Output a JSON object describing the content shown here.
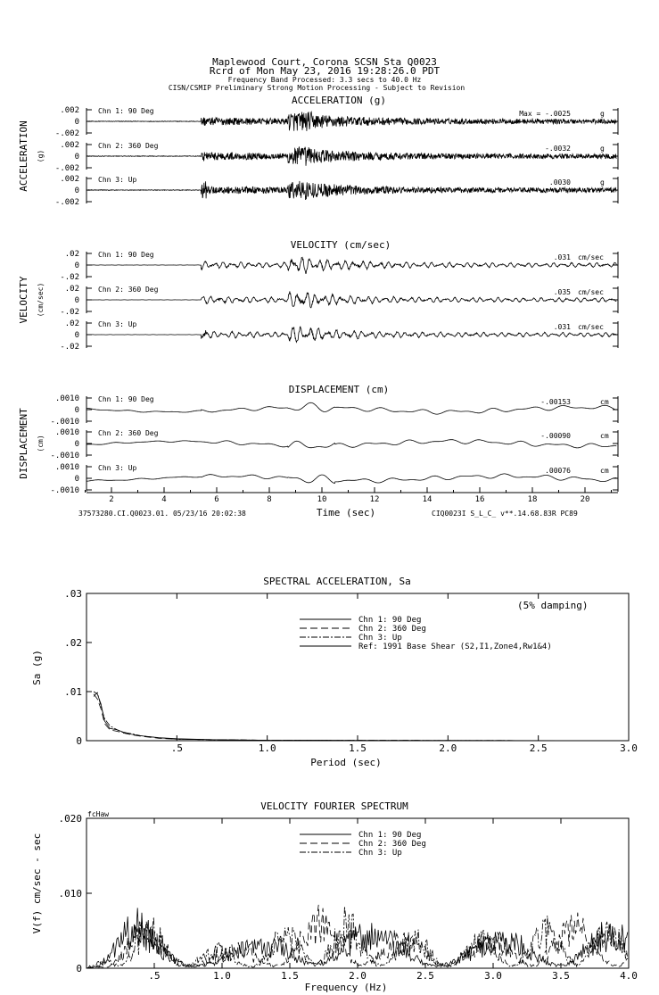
{
  "header": {
    "line1": "Maplewood Court, Corona    SCSN Sta Q0023",
    "line2": "Rcrd of Mon May 23, 2016 19:28:26.0 PDT",
    "line3": "Frequency Band Processed: 3.3 secs to 40.0 Hz",
    "line4": "CISN/CSMIP Preliminary Strong Motion Processing - Subject to Revision"
  },
  "footer": {
    "left": "37573280.CI.Q0023.01. 05/23/16 20:02:38",
    "right": "CIQ0023I  S_L_C_  v**.14.68.83R PC89"
  },
  "chart_data": [
    {
      "type": "line",
      "title": "ACCELERATION (g)",
      "ylabel": "ACCELERATION",
      "yunit": "(g)",
      "xlabel": "Time (sec)",
      "xlim": [
        1,
        21.2
      ],
      "ylim": [
        -0.002,
        0.002
      ],
      "yticks": [
        ".002",
        "0",
        "-.002"
      ],
      "max_prefix": "Max = ",
      "channels": [
        {
          "name": "Chn 1: 90 Deg",
          "peak": "-.0025",
          "unit": "g"
        },
        {
          "name": "Chn 2: 360 Deg",
          "peak": "-.0032",
          "unit": "g"
        },
        {
          "name": "Chn 3: Up",
          "peak": ".0030",
          "unit": "g"
        }
      ]
    },
    {
      "type": "line",
      "title": "VELOCITY (cm/sec)",
      "ylabel": "VELOCITY",
      "yunit": "(cm/sec)",
      "xlabel": "Time (sec)",
      "xlim": [
        1,
        21.2
      ],
      "ylim": [
        -0.02,
        0.02
      ],
      "yticks": [
        ".02",
        "0",
        "-.02"
      ],
      "channels": [
        {
          "name": "Chn 1: 90 Deg",
          "peak": ".031",
          "unit": "cm/sec"
        },
        {
          "name": "Chn 2: 360 Deg",
          "peak": ".035",
          "unit": "cm/sec"
        },
        {
          "name": "Chn 3: Up",
          "peak": ".031",
          "unit": "cm/sec"
        }
      ]
    },
    {
      "type": "line",
      "title": "DISPLACEMENT (cm)",
      "ylabel": "DISPLACEMENT",
      "yunit": "(cm)",
      "xlabel": "Time (sec)",
      "xlim": [
        1,
        21.2
      ],
      "ylim": [
        -0.001,
        0.001
      ],
      "yticks": [
        ".0010",
        "0",
        "-.0010"
      ],
      "xticks": [
        "2",
        "4",
        "6",
        "8",
        "10",
        "12",
        "14",
        "16",
        "18",
        "20"
      ],
      "channels": [
        {
          "name": "Chn 1: 90 Deg",
          "peak": "-.00153",
          "unit": "cm"
        },
        {
          "name": "Chn 2: 360 Deg",
          "peak": "-.00090",
          "unit": "cm"
        },
        {
          "name": "Chn 3: Up",
          "peak": ".00076",
          "unit": "cm"
        }
      ]
    },
    {
      "type": "line",
      "title": "SPECTRAL ACCELERATION, Sa",
      "xlabel": "Period (sec)",
      "ylabel": "Sa (g)",
      "note": "(5% damping)",
      "xlim": [
        0,
        3
      ],
      "ylim": [
        0,
        0.03
      ],
      "xticks": [
        ".5",
        "1.0",
        "1.5",
        "2.0",
        "2.5",
        "3.0"
      ],
      "yticks": [
        ".03",
        ".02",
        ".01",
        "0"
      ],
      "series": [
        {
          "name": "Chn 1: 90 Deg",
          "style": "solid",
          "x": [
            0.04,
            0.06,
            0.08,
            0.1,
            0.13,
            0.17,
            0.2,
            0.25,
            0.3,
            0.4,
            0.5,
            0.7,
            1.0,
            3.0
          ],
          "y": [
            0.01,
            0.0095,
            0.0075,
            0.004,
            0.0025,
            0.0022,
            0.0018,
            0.0013,
            0.001,
            0.0006,
            0.0004,
            0.0002,
            0.0001,
            0
          ]
        },
        {
          "name": "Chn 2: 360 Deg",
          "style": "dashed",
          "x": [
            0.04,
            0.06,
            0.08,
            0.1,
            0.13,
            0.17,
            0.2,
            0.25,
            0.3,
            0.4,
            0.5,
            0.7,
            1.0,
            3.0
          ],
          "y": [
            0.0095,
            0.0085,
            0.0065,
            0.0035,
            0.0022,
            0.0019,
            0.0016,
            0.0012,
            0.0009,
            0.0005,
            0.0003,
            0.0002,
            0.0001,
            0
          ]
        },
        {
          "name": "Chn 3: Up",
          "style": "dashdot",
          "x": [
            0.04,
            0.06,
            0.08,
            0.1,
            0.13,
            0.17,
            0.2,
            0.25,
            0.3,
            0.4,
            0.5,
            0.7,
            1.0,
            3.0
          ],
          "y": [
            0.009,
            0.0098,
            0.007,
            0.0045,
            0.003,
            0.0022,
            0.0017,
            0.0014,
            0.001,
            0.0006,
            0.0003,
            0.0002,
            0.0001,
            0
          ]
        },
        {
          "name": "Ref: 1991 Base Shear (S2,I1,Zone4,Rw1&4)",
          "style": "solid",
          "x": [],
          "y": []
        }
      ]
    },
    {
      "type": "line",
      "title": "VELOCITY FOURIER SPECTRUM",
      "xlabel": "Frequency (Hz)",
      "ylabel": "V(f)  cm/sec - sec",
      "corner": "fcHaw",
      "xlim": [
        0,
        4
      ],
      "ylim": [
        0,
        0.02
      ],
      "xticks": [
        ".5",
        "1.0",
        "1.5",
        "2.0",
        "2.5",
        "3.0",
        "3.5",
        "4.0"
      ],
      "yticks": [
        ".020",
        ".010",
        "0"
      ],
      "series": [
        {
          "name": "Chn 1: 90 Deg",
          "style": "solid"
        },
        {
          "name": "Chn 2: 360 Deg",
          "style": "dashed"
        },
        {
          "name": "Chn 3: Up",
          "style": "dashdot"
        }
      ],
      "envelope_x": [
        0,
        0.1,
        0.25,
        0.4,
        0.6,
        0.8,
        1.0,
        1.3,
        1.6,
        1.9,
        2.2,
        2.5,
        2.8,
        3.1,
        3.4,
        3.7,
        4.0
      ],
      "envelope_y": [
        0,
        0.001,
        0.005,
        0.006,
        0.004,
        0.003,
        0.0025,
        0.003,
        0.006,
        0.006,
        0.004,
        0.004,
        0.0035,
        0.004,
        0.005,
        0.006,
        0.004
      ]
    }
  ]
}
